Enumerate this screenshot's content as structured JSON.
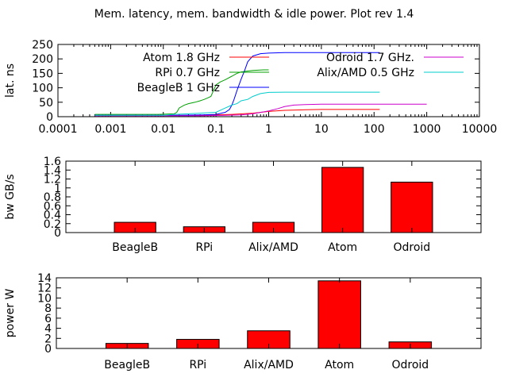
{
  "title": "Mem. latency, mem. bandwidth & idle power. Plot rev 1.4",
  "chart_data": [
    {
      "type": "line",
      "ylabel": "lat. ns",
      "xscale": "log",
      "xlim": [
        0.0001,
        10000
      ],
      "ylim": [
        0,
        250
      ],
      "xticks": [
        "0.0001",
        "0.001",
        "0.01",
        "0.1",
        "1",
        "10",
        "100",
        "1000",
        "10000"
      ],
      "yticks": [
        "0",
        "50",
        "100",
        "150",
        "200",
        "250"
      ],
      "legend_position": "top",
      "series": [
        {
          "name": "Atom 1.8 GHz",
          "color": "#ff0000",
          "x": [
            0.0005,
            0.01,
            0.05,
            0.1,
            0.2,
            0.5,
            1,
            2,
            5,
            10,
            50,
            128
          ],
          "y": [
            4,
            4,
            5,
            6,
            8,
            12,
            18,
            22,
            24,
            25,
            25,
            25
          ]
        },
        {
          "name": "RPi 0.7 GHz",
          "color": "#00a000",
          "x": [
            0.0005,
            0.008,
            0.016,
            0.018,
            0.02,
            0.025,
            0.03,
            0.04,
            0.05,
            0.06,
            0.07,
            0.08,
            0.1,
            0.12,
            0.15,
            0.2,
            0.25,
            0.3,
            0.4,
            0.5,
            0.8,
            1
          ],
          "y": [
            8,
            8,
            10,
            15,
            30,
            40,
            45,
            50,
            55,
            60,
            65,
            70,
            110,
            120,
            128,
            140,
            150,
            155,
            158,
            160,
            162,
            162
          ]
        },
        {
          "name": "BeagleB 1 GHz",
          "color": "#0000ff",
          "x": [
            0.0005,
            0.02,
            0.05,
            0.1,
            0.15,
            0.18,
            0.2,
            0.22,
            0.25,
            0.3,
            0.35,
            0.4,
            0.5,
            0.7,
            1,
            2,
            5,
            10,
            50,
            128
          ],
          "y": [
            5,
            5,
            6,
            8,
            15,
            25,
            40,
            60,
            90,
            130,
            160,
            190,
            210,
            218,
            220,
            222,
            222,
            222,
            222,
            222
          ]
        },
        {
          "name": "Odroid 1.7 GHz.",
          "color": "#cc00cc",
          "x": [
            0.0005,
            0.05,
            0.1,
            0.3,
            0.5,
            1,
            1.5,
            2,
            3,
            5,
            10,
            100,
            1000
          ],
          "y": [
            3,
            3,
            4,
            6,
            10,
            20,
            28,
            35,
            40,
            42,
            43,
            43,
            43
          ]
        },
        {
          "name": "Alix/AMD 0.5 GHz",
          "color": "#00cccc",
          "x": [
            0.0005,
            0.01,
            0.016,
            0.03,
            0.05,
            0.1,
            0.15,
            0.2,
            0.25,
            0.3,
            0.4,
            0.5,
            0.7,
            1,
            2,
            5,
            128
          ],
          "y": [
            5,
            5,
            8,
            10,
            12,
            15,
            30,
            40,
            45,
            55,
            60,
            70,
            80,
            84,
            85,
            85,
            85
          ]
        }
      ]
    },
    {
      "type": "bar",
      "ylabel": "bw GB/s",
      "ylim": [
        0,
        1.6
      ],
      "yticks": [
        "0",
        "0.2",
        "0.4",
        "0.6",
        "0.8",
        "1",
        "1.2",
        "1.4",
        "1.6"
      ],
      "categories": [
        "BeagleB",
        "RPi",
        "Alix/AMD",
        "Atom",
        "Odroid"
      ],
      "values": [
        0.23,
        0.13,
        0.23,
        1.46,
        1.13
      ],
      "color": "#ff0000"
    },
    {
      "type": "bar",
      "ylabel": "power W",
      "ylim": [
        0,
        14
      ],
      "yticks": [
        "0",
        "2",
        "4",
        "6",
        "8",
        "10",
        "12",
        "14"
      ],
      "categories": [
        "BeagleB",
        "RPi",
        "Alix/AMD",
        "Atom",
        "Odroid"
      ],
      "values": [
        1.0,
        1.8,
        3.5,
        13.4,
        1.3
      ],
      "color": "#ff0000"
    }
  ]
}
